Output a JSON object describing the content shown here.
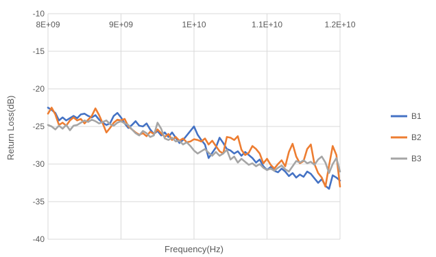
{
  "chart_data": {
    "type": "line",
    "xlabel": "Frequency(Hz)",
    "ylabel": "Return Loss(dB)",
    "xlim": [
      8000000000,
      12000000000
    ],
    "ylim": [
      -40,
      -10
    ],
    "x_ticks": [
      "8E+09",
      "9E+09",
      "1E+10",
      "1.1E+10",
      "1.2E+10"
    ],
    "y_ticks": [
      "-10",
      "-15",
      "-20",
      "-25",
      "-30",
      "-35",
      "-40"
    ],
    "grid": "vertical and horizontal",
    "legend_position": "right",
    "series": [
      {
        "name": "B1",
        "color": "#4472C4",
        "points": [
          [
            8000000000,
            -22.5
          ],
          [
            8050000000,
            -22.8
          ],
          [
            8100000000,
            -23.2
          ],
          [
            8150000000,
            -24.2
          ],
          [
            8200000000,
            -23.8
          ],
          [
            8250000000,
            -24.2
          ],
          [
            8300000000,
            -23.9
          ],
          [
            8350000000,
            -23.6
          ],
          [
            8400000000,
            -23.9
          ],
          [
            8450000000,
            -23.4
          ],
          [
            8500000000,
            -23.3
          ],
          [
            8550000000,
            -23.6
          ],
          [
            8600000000,
            -23.8
          ],
          [
            8650000000,
            -23.5
          ],
          [
            8700000000,
            -24.1
          ],
          [
            8750000000,
            -24.5
          ],
          [
            8800000000,
            -24.8
          ],
          [
            8850000000,
            -24.6
          ],
          [
            8900000000,
            -23.6
          ],
          [
            8950000000,
            -23.2
          ],
          [
            9000000000,
            -23.8
          ],
          [
            9050000000,
            -24.6
          ],
          [
            9100000000,
            -25.2
          ],
          [
            9150000000,
            -24.8
          ],
          [
            9200000000,
            -24.3
          ],
          [
            9250000000,
            -24.9
          ],
          [
            9300000000,
            -25.0
          ],
          [
            9350000000,
            -24.6
          ],
          [
            9400000000,
            -25.4
          ],
          [
            9450000000,
            -26.0
          ],
          [
            9500000000,
            -25.6
          ],
          [
            9550000000,
            -26.2
          ],
          [
            9600000000,
            -25.8
          ],
          [
            9650000000,
            -26.4
          ],
          [
            9700000000,
            -25.8
          ],
          [
            9750000000,
            -26.5
          ],
          [
            9800000000,
            -27.2
          ],
          [
            9850000000,
            -26.8
          ],
          [
            9900000000,
            -26.2
          ],
          [
            9950000000,
            -25.6
          ],
          [
            10000000000,
            -25.0
          ],
          [
            10050000000,
            -26.1
          ],
          [
            10100000000,
            -26.8
          ],
          [
            10150000000,
            -27.4
          ],
          [
            10200000000,
            -29.2
          ],
          [
            10250000000,
            -28.5
          ],
          [
            10300000000,
            -27.8
          ],
          [
            10350000000,
            -26.5
          ],
          [
            10400000000,
            -27.2
          ],
          [
            10450000000,
            -28.0
          ],
          [
            10500000000,
            -28.2
          ],
          [
            10550000000,
            -28.6
          ],
          [
            10600000000,
            -28.3
          ],
          [
            10650000000,
            -28.9
          ],
          [
            10700000000,
            -28.4
          ],
          [
            10750000000,
            -28.8
          ],
          [
            10800000000,
            -29.2
          ],
          [
            10850000000,
            -29.8
          ],
          [
            10900000000,
            -29.4
          ],
          [
            10950000000,
            -30.3
          ],
          [
            11000000000,
            -30.8
          ],
          [
            11050000000,
            -30.4
          ],
          [
            11100000000,
            -30.9
          ],
          [
            11150000000,
            -31.1
          ],
          [
            11200000000,
            -30.6
          ],
          [
            11250000000,
            -31.0
          ],
          [
            11300000000,
            -31.6
          ],
          [
            11350000000,
            -31.2
          ],
          [
            11400000000,
            -31.8
          ],
          [
            11450000000,
            -31.4
          ],
          [
            11500000000,
            -31.7
          ],
          [
            11550000000,
            -31.0
          ],
          [
            11600000000,
            -31.3
          ],
          [
            11650000000,
            -31.9
          ],
          [
            11700000000,
            -32.5
          ],
          [
            11750000000,
            -32.0
          ],
          [
            11800000000,
            -32.9
          ],
          [
            11850000000,
            -33.3
          ],
          [
            11900000000,
            -31.5
          ],
          [
            11950000000,
            -31.8
          ],
          [
            12000000000,
            -32.2
          ]
        ]
      },
      {
        "name": "B2",
        "color": "#ED7D31",
        "points": [
          [
            8000000000,
            -23.3
          ],
          [
            8050000000,
            -22.5
          ],
          [
            8100000000,
            -23.4
          ],
          [
            8150000000,
            -24.8
          ],
          [
            8200000000,
            -24.5
          ],
          [
            8250000000,
            -24.9
          ],
          [
            8300000000,
            -24.2
          ],
          [
            8350000000,
            -23.8
          ],
          [
            8400000000,
            -24.2
          ],
          [
            8450000000,
            -24.0
          ],
          [
            8500000000,
            -24.6
          ],
          [
            8550000000,
            -24.1
          ],
          [
            8600000000,
            -23.6
          ],
          [
            8650000000,
            -22.6
          ],
          [
            8700000000,
            -23.5
          ],
          [
            8750000000,
            -24.6
          ],
          [
            8800000000,
            -25.8
          ],
          [
            8850000000,
            -25.2
          ],
          [
            8900000000,
            -24.5
          ],
          [
            8950000000,
            -24.1
          ],
          [
            9000000000,
            -24.2
          ],
          [
            9050000000,
            -24.0
          ],
          [
            9100000000,
            -25.0
          ],
          [
            9150000000,
            -25.4
          ],
          [
            9200000000,
            -25.8
          ],
          [
            9250000000,
            -26.1
          ],
          [
            9300000000,
            -25.9
          ],
          [
            9350000000,
            -26.3
          ],
          [
            9400000000,
            -25.7
          ],
          [
            9450000000,
            -26.0
          ],
          [
            9500000000,
            -25.4
          ],
          [
            9550000000,
            -25.9
          ],
          [
            9600000000,
            -26.4
          ],
          [
            9650000000,
            -26.0
          ],
          [
            9700000000,
            -26.8
          ],
          [
            9750000000,
            -26.4
          ],
          [
            9800000000,
            -26.9
          ],
          [
            9850000000,
            -26.6
          ],
          [
            9900000000,
            -27.1
          ],
          [
            9950000000,
            -27.0
          ],
          [
            10000000000,
            -26.7
          ],
          [
            10050000000,
            -26.8
          ],
          [
            10100000000,
            -27.0
          ],
          [
            10150000000,
            -26.6
          ],
          [
            10200000000,
            -27.4
          ],
          [
            10250000000,
            -26.9
          ],
          [
            10300000000,
            -27.6
          ],
          [
            10350000000,
            -28.3
          ],
          [
            10400000000,
            -28.6
          ],
          [
            10450000000,
            -26.4
          ],
          [
            10500000000,
            -26.5
          ],
          [
            10550000000,
            -26.8
          ],
          [
            10600000000,
            -26.3
          ],
          [
            10650000000,
            -28.1
          ],
          [
            10700000000,
            -28.8
          ],
          [
            10750000000,
            -28.5
          ],
          [
            10800000000,
            -27.6
          ],
          [
            10850000000,
            -28.0
          ],
          [
            10900000000,
            -28.6
          ],
          [
            10950000000,
            -29.9
          ],
          [
            11000000000,
            -29.3
          ],
          [
            11050000000,
            -30.1
          ],
          [
            11100000000,
            -30.6
          ],
          [
            11150000000,
            -30.0
          ],
          [
            11200000000,
            -29.5
          ],
          [
            11250000000,
            -30.3
          ],
          [
            11300000000,
            -28.4
          ],
          [
            11350000000,
            -27.3
          ],
          [
            11400000000,
            -29.0
          ],
          [
            11450000000,
            -29.9
          ],
          [
            11500000000,
            -29.6
          ],
          [
            11550000000,
            -28.0
          ],
          [
            11600000000,
            -27.4
          ],
          [
            11650000000,
            -30.0
          ],
          [
            11700000000,
            -31.2
          ],
          [
            11750000000,
            -31.8
          ],
          [
            11800000000,
            -33.0
          ],
          [
            11850000000,
            -30.2
          ],
          [
            11900000000,
            -27.6
          ],
          [
            11950000000,
            -28.8
          ],
          [
            12000000000,
            -33.0
          ]
        ]
      },
      {
        "name": "B3",
        "color": "#A5A5A5",
        "points": [
          [
            8000000000,
            -24.8
          ],
          [
            8050000000,
            -25.0
          ],
          [
            8100000000,
            -25.4
          ],
          [
            8150000000,
            -24.9
          ],
          [
            8200000000,
            -25.3
          ],
          [
            8250000000,
            -24.8
          ],
          [
            8300000000,
            -25.5
          ],
          [
            8350000000,
            -24.9
          ],
          [
            8400000000,
            -24.8
          ],
          [
            8450000000,
            -24.5
          ],
          [
            8500000000,
            -24.2
          ],
          [
            8550000000,
            -24.4
          ],
          [
            8600000000,
            -24.1
          ],
          [
            8650000000,
            -24.3
          ],
          [
            8700000000,
            -24.6
          ],
          [
            8750000000,
            -24.4
          ],
          [
            8800000000,
            -24.2
          ],
          [
            8850000000,
            -24.7
          ],
          [
            8900000000,
            -24.9
          ],
          [
            8950000000,
            -24.5
          ],
          [
            9000000000,
            -24.3
          ],
          [
            9050000000,
            -24.6
          ],
          [
            9100000000,
            -24.8
          ],
          [
            9150000000,
            -25.4
          ],
          [
            9200000000,
            -25.9
          ],
          [
            9250000000,
            -26.2
          ],
          [
            9300000000,
            -25.6
          ],
          [
            9350000000,
            -25.9
          ],
          [
            9400000000,
            -26.4
          ],
          [
            9450000000,
            -26.2
          ],
          [
            9500000000,
            -24.5
          ],
          [
            9550000000,
            -25.3
          ],
          [
            9600000000,
            -26.6
          ],
          [
            9650000000,
            -26.8
          ],
          [
            9700000000,
            -26.5
          ],
          [
            9750000000,
            -27.0
          ],
          [
            9800000000,
            -26.9
          ],
          [
            9850000000,
            -27.4
          ],
          [
            9900000000,
            -27.1
          ],
          [
            9950000000,
            -27.6
          ],
          [
            10000000000,
            -28.2
          ],
          [
            10050000000,
            -28.6
          ],
          [
            10100000000,
            -28.3
          ],
          [
            10150000000,
            -28.0
          ],
          [
            10200000000,
            -28.5
          ],
          [
            10250000000,
            -28.9
          ],
          [
            10300000000,
            -28.4
          ],
          [
            10350000000,
            -28.9
          ],
          [
            10400000000,
            -28.6
          ],
          [
            10450000000,
            -28.1
          ],
          [
            10500000000,
            -29.4
          ],
          [
            10550000000,
            -29.0
          ],
          [
            10600000000,
            -29.8
          ],
          [
            10650000000,
            -29.3
          ],
          [
            10700000000,
            -29.7
          ],
          [
            10750000000,
            -30.1
          ],
          [
            10800000000,
            -29.9
          ],
          [
            10850000000,
            -30.3
          ],
          [
            10900000000,
            -30.0
          ],
          [
            10950000000,
            -30.5
          ],
          [
            11000000000,
            -30.8
          ],
          [
            11050000000,
            -30.6
          ],
          [
            11100000000,
            -30.9
          ],
          [
            11150000000,
            -30.5
          ],
          [
            11200000000,
            -30.2
          ],
          [
            11250000000,
            -30.7
          ],
          [
            11300000000,
            -31.0
          ],
          [
            11350000000,
            -30.3
          ],
          [
            11400000000,
            -29.6
          ],
          [
            11450000000,
            -29.8
          ],
          [
            11500000000,
            -29.5
          ],
          [
            11550000000,
            -29.9
          ],
          [
            11600000000,
            -29.7
          ],
          [
            11650000000,
            -30.1
          ],
          [
            11700000000,
            -29.4
          ],
          [
            11750000000,
            -29.0
          ],
          [
            11800000000,
            -29.8
          ],
          [
            11850000000,
            -31.2
          ],
          [
            11900000000,
            -30.0
          ],
          [
            11950000000,
            -29.2
          ],
          [
            12000000000,
            -31.0
          ]
        ]
      }
    ]
  }
}
